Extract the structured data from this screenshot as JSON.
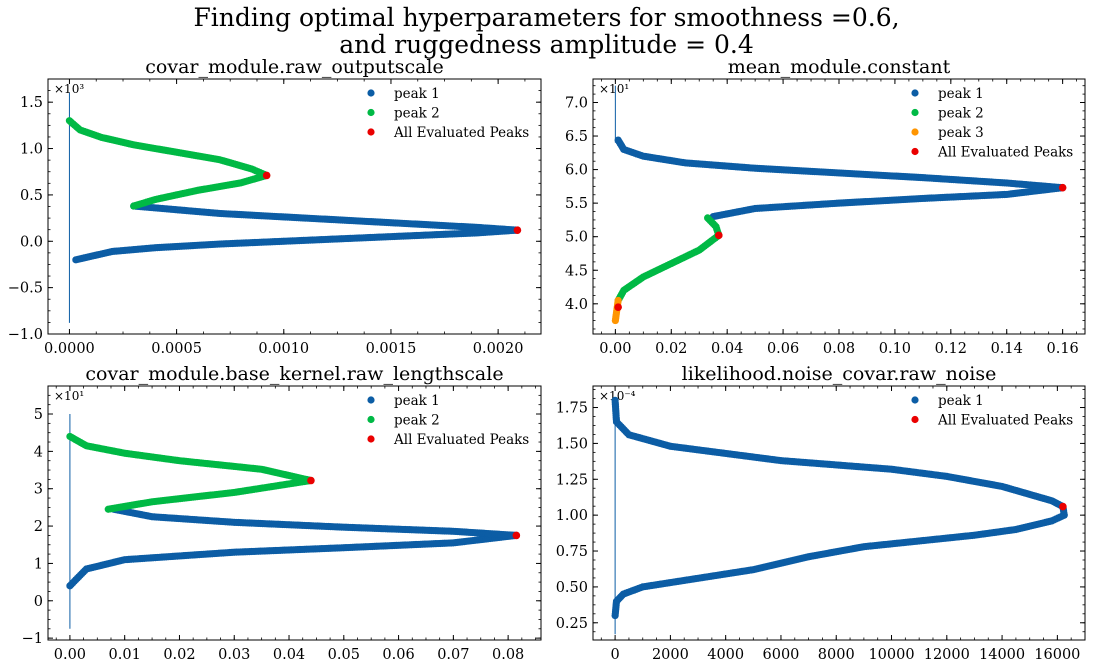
{
  "figure": {
    "title_line1": "Finding optimal hyperparameters for smoothness =0.6,",
    "title_line2": "and ruggedness amplitude = 0.4"
  },
  "colors": {
    "peak 1": "#0c5da5",
    "peak 2": "#00b945",
    "peak 3": "#ff9500",
    "All Evaluated Peaks": "#ea0000"
  },
  "chart_data": [
    {
      "type": "scatter",
      "title": "covar_module.raw_outputscale",
      "multiplier": "×10³",
      "xlim": [
        -0.0001,
        0.0022
      ],
      "ylim": [
        -1.0,
        1.75
      ],
      "xticks": [
        0.0,
        0.0005,
        0.001,
        0.0015,
        0.002
      ],
      "xticklabels": [
        "0.0000",
        "0.0005",
        "0.0010",
        "0.0015",
        "0.0020"
      ],
      "yticks": [
        -1.0,
        -0.5,
        0.0,
        0.5,
        1.0,
        1.5
      ],
      "yticklabels": [
        "−1.0",
        "−0.5",
        "0.0",
        "0.5",
        "1.0",
        "1.5"
      ],
      "legend": "top-right",
      "legend_entries": [
        "peak 1",
        "peak 2",
        "All Evaluated Peaks"
      ],
      "trace": {
        "x": [
          0.0,
          0.0,
          0.0
        ],
        "y": [
          -0.88,
          -0.2,
          1.6
        ]
      },
      "series": [
        {
          "name": "peak 1",
          "points": [
            [
              3e-05,
              -0.2
            ],
            [
              0.0002,
              -0.11
            ],
            [
              0.0004,
              -0.07
            ],
            [
              0.0007,
              -0.03
            ],
            [
              0.001,
              0.0
            ],
            [
              0.0013,
              0.03
            ],
            [
              0.0016,
              0.06
            ],
            [
              0.0019,
              0.09
            ],
            [
              0.00209,
              0.12
            ],
            [
              0.0019,
              0.15
            ],
            [
              0.0015,
              0.2
            ],
            [
              0.0011,
              0.25
            ],
            [
              0.0007,
              0.3
            ],
            [
              0.0003,
              0.38
            ]
          ]
        },
        {
          "name": "peak 2",
          "points": [
            [
              0.0003,
              0.38
            ],
            [
              0.0004,
              0.45
            ],
            [
              0.0006,
              0.55
            ],
            [
              0.0008,
              0.63
            ],
            [
              0.00092,
              0.71
            ],
            [
              0.00085,
              0.78
            ],
            [
              0.0007,
              0.88
            ],
            [
              0.0005,
              0.96
            ],
            [
              0.0003,
              1.04
            ],
            [
              0.00015,
              1.12
            ],
            [
              5e-05,
              1.2
            ],
            [
              0.0,
              1.3
            ]
          ]
        },
        {
          "name": "All Evaluated Peaks",
          "points": [
            [
              0.00209,
              0.12
            ],
            [
              0.00092,
              0.71
            ]
          ]
        }
      ]
    },
    {
      "type": "scatter",
      "title": "mean_module.constant",
      "multiplier": "×10¹",
      "xlim": [
        -0.008,
        0.168
      ],
      "ylim": [
        3.55,
        7.35
      ],
      "xticks": [
        0.0,
        0.02,
        0.04,
        0.06,
        0.08,
        0.1,
        0.12,
        0.14,
        0.16
      ],
      "xticklabels": [
        "0.00",
        "0.02",
        "0.04",
        "0.06",
        "0.08",
        "0.10",
        "0.12",
        "0.14",
        "0.16"
      ],
      "yticks": [
        4.0,
        4.5,
        5.0,
        5.5,
        6.0,
        6.5,
        7.0
      ],
      "yticklabels": [
        "4.0",
        "4.5",
        "5.0",
        "5.5",
        "6.0",
        "6.5",
        "7.0"
      ],
      "legend": "top-right",
      "legend_entries": [
        "peak 1",
        "peak 2",
        "peak 3",
        "All Evaluated Peaks"
      ],
      "trace": {
        "x": [
          0.0,
          0.0,
          0.0
        ],
        "y": [
          6.4,
          6.9,
          7.25
        ]
      },
      "series": [
        {
          "name": "peak 1",
          "points": [
            [
              0.001,
              6.44
            ],
            [
              0.003,
              6.3
            ],
            [
              0.01,
              6.2
            ],
            [
              0.025,
              6.1
            ],
            [
              0.05,
              6.02
            ],
            [
              0.08,
              5.95
            ],
            [
              0.11,
              5.88
            ],
            [
              0.14,
              5.8
            ],
            [
              0.16,
              5.73
            ],
            [
              0.14,
              5.63
            ],
            [
              0.11,
              5.57
            ],
            [
              0.08,
              5.5
            ],
            [
              0.05,
              5.42
            ],
            [
              0.035,
              5.3
            ]
          ]
        },
        {
          "name": "peak 2",
          "points": [
            [
              0.033,
              5.28
            ],
            [
              0.036,
              5.15
            ],
            [
              0.037,
              5.02
            ],
            [
              0.03,
              4.8
            ],
            [
              0.02,
              4.6
            ],
            [
              0.01,
              4.4
            ],
            [
              0.003,
              4.2
            ],
            [
              0.001,
              4.05
            ]
          ]
        },
        {
          "name": "peak 3",
          "points": [
            [
              0.001,
              4.05
            ],
            [
              0.0005,
              3.9
            ],
            [
              0.0,
              3.75
            ]
          ]
        },
        {
          "name": "All Evaluated Peaks",
          "points": [
            [
              0.16,
              5.73
            ],
            [
              0.037,
              5.02
            ],
            [
              0.001,
              3.95
            ]
          ]
        }
      ]
    },
    {
      "type": "scatter",
      "title": "covar_module.base_kernel.raw_lengthscale",
      "multiplier": "×10¹",
      "xlim": [
        -0.004,
        0.086
      ],
      "ylim": [
        -1.05,
        5.75
      ],
      "xticks": [
        0.0,
        0.01,
        0.02,
        0.03,
        0.04,
        0.05,
        0.06,
        0.07,
        0.08
      ],
      "xticklabels": [
        "0.00",
        "0.01",
        "0.02",
        "0.03",
        "0.04",
        "0.05",
        "0.06",
        "0.07",
        "0.08"
      ],
      "yticks": [
        -1,
        0,
        1,
        2,
        3,
        4,
        5
      ],
      "yticklabels": [
        "−1",
        "0",
        "1",
        "2",
        "3",
        "4",
        "5"
      ],
      "legend": "top-right",
      "legend_entries": [
        "peak 1",
        "peak 2",
        "All Evaluated Peaks"
      ],
      "trace": {
        "x": [
          0.0,
          0.0,
          0.0
        ],
        "y": [
          -0.75,
          0.4,
          5.0
        ]
      },
      "series": [
        {
          "name": "peak 1",
          "points": [
            [
              0.0,
              0.4
            ],
            [
              0.003,
              0.85
            ],
            [
              0.01,
              1.1
            ],
            [
              0.03,
              1.3
            ],
            [
              0.05,
              1.42
            ],
            [
              0.07,
              1.55
            ],
            [
              0.0815,
              1.75
            ],
            [
              0.07,
              1.86
            ],
            [
              0.05,
              1.97
            ],
            [
              0.03,
              2.1
            ],
            [
              0.015,
              2.25
            ],
            [
              0.008,
              2.45
            ]
          ]
        },
        {
          "name": "peak 2",
          "points": [
            [
              0.007,
              2.45
            ],
            [
              0.015,
              2.65
            ],
            [
              0.03,
              2.9
            ],
            [
              0.044,
              3.22
            ],
            [
              0.035,
              3.52
            ],
            [
              0.02,
              3.75
            ],
            [
              0.01,
              3.95
            ],
            [
              0.003,
              4.15
            ],
            [
              0.0,
              4.4
            ]
          ]
        },
        {
          "name": "All Evaluated Peaks",
          "points": [
            [
              0.0815,
              1.75
            ],
            [
              0.044,
              3.22
            ]
          ]
        }
      ]
    },
    {
      "type": "scatter",
      "title": "likelihood.noise_covar.raw_noise",
      "multiplier": "×10⁻⁴",
      "xlim": [
        -800,
        17000
      ],
      "ylim": [
        0.13,
        1.9
      ],
      "xticks": [
        0,
        2000,
        4000,
        6000,
        8000,
        10000,
        12000,
        14000,
        16000
      ],
      "xticklabels": [
        "0",
        "2000",
        "4000",
        "6000",
        "8000",
        "10000",
        "12000",
        "14000",
        "16000"
      ],
      "yticks": [
        0.25,
        0.5,
        0.75,
        1.0,
        1.25,
        1.5,
        1.75
      ],
      "yticklabels": [
        "0.25",
        "0.50",
        "0.75",
        "1.00",
        "1.25",
        "1.50",
        "1.75"
      ],
      "legend": "top-right",
      "legend_entries": [
        "peak 1",
        "All Evaluated Peaks"
      ],
      "trace": {
        "x": [
          0,
          0,
          0
        ],
        "y": [
          0.17,
          0.3,
          1.8
        ]
      },
      "series": [
        {
          "name": "peak 1",
          "points": [
            [
              0,
              0.3
            ],
            [
              50,
              0.4
            ],
            [
              300,
              0.45
            ],
            [
              1000,
              0.5
            ],
            [
              3000,
              0.56
            ],
            [
              5000,
              0.62
            ],
            [
              7000,
              0.71
            ],
            [
              9000,
              0.78
            ],
            [
              11000,
              0.82
            ],
            [
              13000,
              0.86
            ],
            [
              14500,
              0.9
            ],
            [
              15800,
              0.96
            ],
            [
              16250,
              1.0
            ],
            [
              16200,
              1.06
            ],
            [
              15800,
              1.1
            ],
            [
              14000,
              1.2
            ],
            [
              12000,
              1.27
            ],
            [
              10000,
              1.32
            ],
            [
              8000,
              1.35
            ],
            [
              6000,
              1.38
            ],
            [
              4000,
              1.43
            ],
            [
              2000,
              1.48
            ],
            [
              500,
              1.56
            ],
            [
              50,
              1.65
            ],
            [
              0,
              1.8
            ]
          ]
        },
        {
          "name": "All Evaluated Peaks",
          "points": [
            [
              16200,
              1.06
            ]
          ]
        }
      ]
    }
  ]
}
